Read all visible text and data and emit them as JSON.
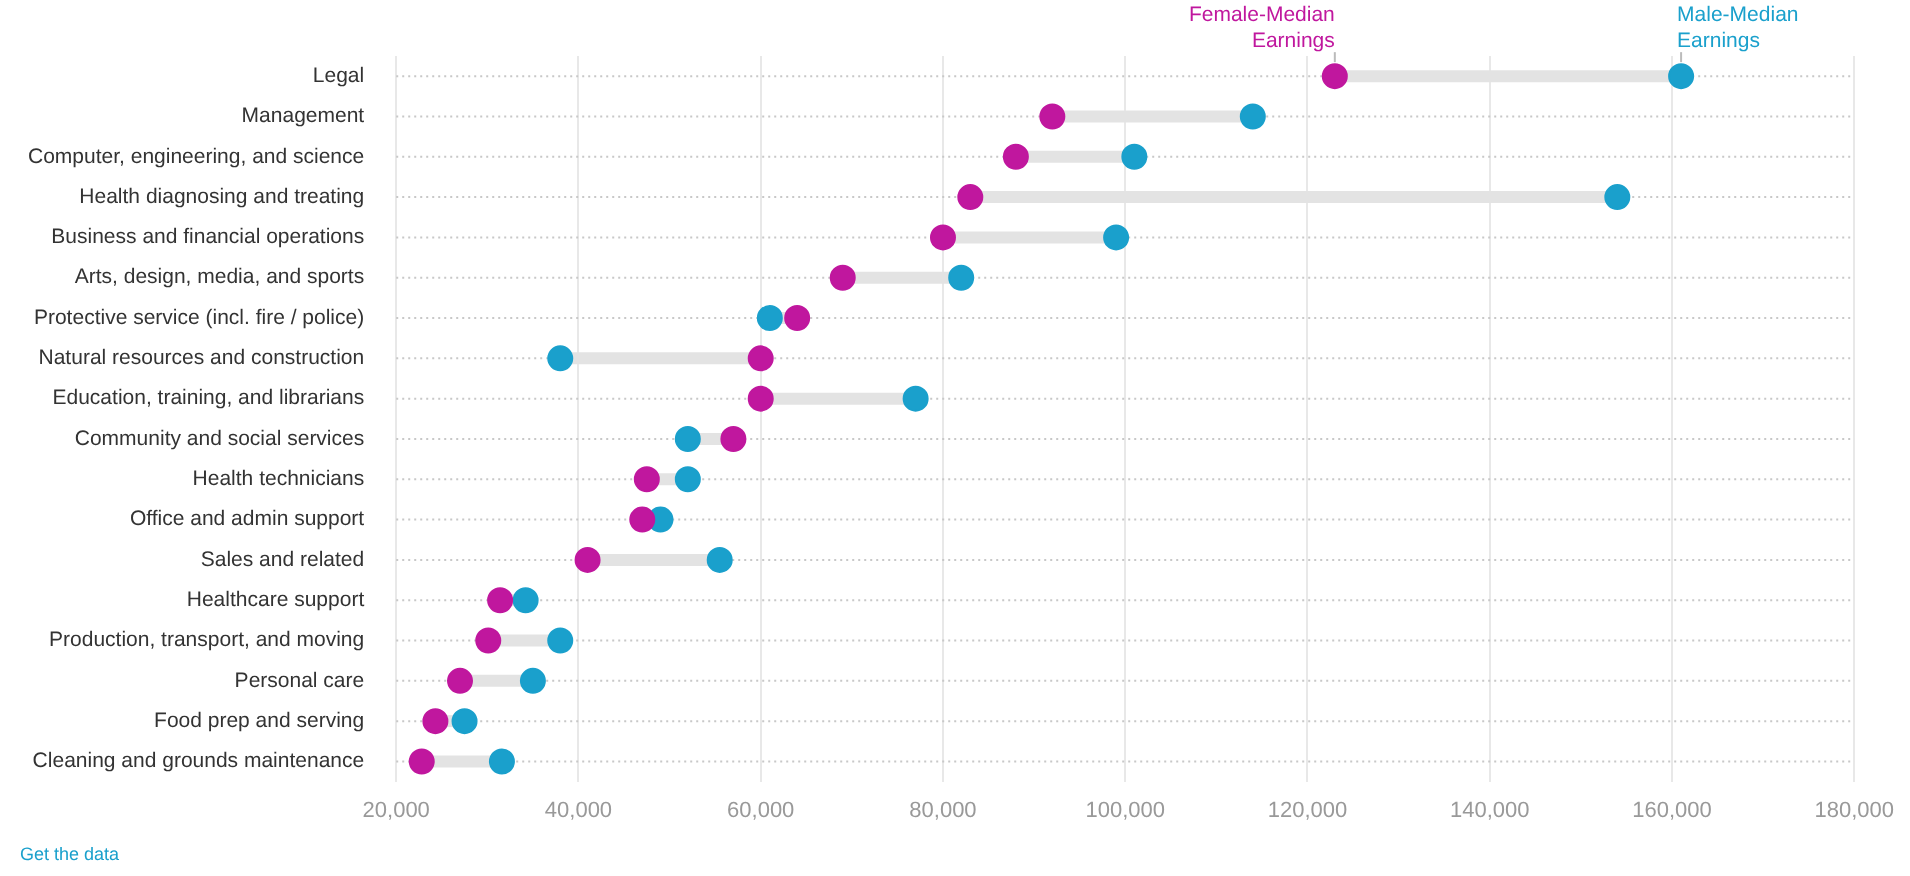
{
  "chart_data": {
    "type": "scatter",
    "orientation": "horizontal",
    "categories": [
      "Legal",
      "Management",
      "Computer, engineering, and science",
      "Health diagnosing and treating",
      "Business and financial operations",
      "Arts, design, media, and sports",
      "Protective service (incl. fire / police)",
      "Natural resources and construction",
      "Education, training, and librarians",
      "Community and social services",
      "Health technicians",
      "Office and admin support",
      "Sales and related",
      "Healthcare support",
      "Production, transport, and moving",
      "Personal care",
      "Food prep and serving",
      "Cleaning and grounds maintenance"
    ],
    "series": [
      {
        "name": "Female-Median Earnings",
        "color": "#c0179e",
        "values": [
          123000,
          92000,
          88000,
          83000,
          80000,
          69000,
          64000,
          60000,
          60000,
          57000,
          47500,
          47000,
          41000,
          31400,
          30100,
          27000,
          24300,
          22800
        ]
      },
      {
        "name": "Male-Median Earnings",
        "color": "#1aa0cc",
        "values": [
          161000,
          114000,
          101000,
          154000,
          99000,
          82000,
          61000,
          38000,
          77000,
          52000,
          52000,
          49000,
          55500,
          34200,
          38000,
          35000,
          27500,
          31600
        ]
      }
    ],
    "xlim": [
      20000,
      180000
    ],
    "xticks": [
      {
        "value": 20000,
        "label": "20,000"
      },
      {
        "value": 40000,
        "label": "40,000"
      },
      {
        "value": 60000,
        "label": "60,000"
      },
      {
        "value": 80000,
        "label": "80,000"
      },
      {
        "value": 100000,
        "label": "100,000"
      },
      {
        "value": 120000,
        "label": "120,000"
      },
      {
        "value": 140000,
        "label": "140,000"
      },
      {
        "value": 160000,
        "label": "160,000"
      },
      {
        "value": 180000,
        "label": "180,000"
      }
    ],
    "grid": true,
    "legend": false,
    "marker": "circle",
    "annotations": [
      "Get the data"
    ]
  }
}
